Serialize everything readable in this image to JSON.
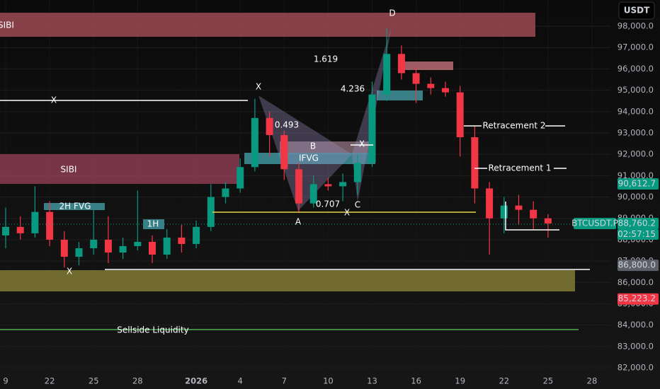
{
  "chart_data": {
    "type": "candlestick",
    "currency_button": "USDT",
    "categories": [
      "9",
      null,
      null,
      "22",
      null,
      null,
      "25",
      null,
      null,
      "28",
      null,
      null,
      null,
      "2026",
      null,
      null,
      "4",
      null,
      null,
      "7",
      null,
      null,
      "10",
      null,
      null,
      "13",
      null,
      null,
      "16",
      null,
      null,
      "19",
      null,
      null,
      "22",
      null,
      null,
      "25",
      null,
      null,
      "28"
    ],
    "open": [
      88200,
      88600,
      88300,
      89300,
      88000,
      87200,
      87600,
      88000,
      87400,
      87700,
      87900,
      87300,
      88100,
      87800,
      88600,
      90000,
      90400,
      91400,
      93700,
      92900,
      91300,
      89700,
      90600,
      90500,
      90700,
      91600,
      94800,
      96700,
      95800,
      95300,
      95100,
      94900,
      92800,
      90400,
      89000,
      89600,
      89400,
      89000,
      null,
      null,
      null
    ],
    "high": [
      89500,
      89100,
      90500,
      89800,
      88400,
      87900,
      89400,
      89100,
      88100,
      90300,
      88200,
      88500,
      88700,
      88900,
      90600,
      90700,
      91800,
      94600,
      94000,
      93100,
      91600,
      91000,
      90900,
      91100,
      92000,
      95400,
      97900,
      97100,
      96100,
      95600,
      95400,
      95200,
      93300,
      90700,
      90000,
      90100,
      89800,
      89200,
      null,
      null,
      null
    ],
    "low": [
      87600,
      88000,
      88100,
      87700,
      86700,
      86800,
      87300,
      86900,
      87100,
      87500,
      86900,
      87100,
      87400,
      87600,
      88400,
      89700,
      90200,
      91200,
      91900,
      90800,
      89300,
      89500,
      90300,
      89800,
      90100,
      91400,
      94500,
      95500,
      94400,
      94800,
      94700,
      91900,
      89700,
      87300,
      88300,
      88700,
      88500,
      88100,
      null,
      null,
      null
    ],
    "close": [
      88600,
      88300,
      89300,
      88000,
      87200,
      87600,
      88000,
      87400,
      87700,
      87900,
      87300,
      88100,
      87800,
      88600,
      90000,
      90400,
      91400,
      93700,
      92900,
      91300,
      89700,
      90600,
      90500,
      90700,
      91600,
      94800,
      96700,
      95800,
      95300,
      95100,
      94900,
      92800,
      90400,
      89000,
      89600,
      89400,
      89000,
      88760.2,
      null,
      null,
      null
    ],
    "up_color": "#089981",
    "down_color": "#f23645",
    "ylim": [
      81670,
      99226
    ],
    "yticks": [
      {
        "value": 82000,
        "label": "82,000.0"
      },
      {
        "value": 83000,
        "label": "83,000.0"
      },
      {
        "value": 84000,
        "label": "84,000.0"
      },
      {
        "value": 85000,
        "label": "85,000.0"
      },
      {
        "value": 86000,
        "label": "86,000.0"
      },
      {
        "value": 87000,
        "label": "87,000.0"
      },
      {
        "value": 88000,
        "label": "88,000.0"
      },
      {
        "value": 89000,
        "label": "89,000.0"
      },
      {
        "value": 90000,
        "label": "90,000.0"
      },
      {
        "value": 91000,
        "label": "91,000.0"
      },
      {
        "value": 92000,
        "label": "92,000.0"
      },
      {
        "value": 93000,
        "label": "93,000.0"
      },
      {
        "value": 94000,
        "label": "94,000.0"
      },
      {
        "value": 95000,
        "label": "95,000.0"
      },
      {
        "value": 96000,
        "label": "96,000.0"
      },
      {
        "value": 97000,
        "label": "97,000.0"
      },
      {
        "value": 98000,
        "label": "98,000.0"
      }
    ],
    "grid": true,
    "price_labels": [
      {
        "value": 90612.7,
        "label": "90,612.7",
        "color": "#089981"
      },
      {
        "value": 88760.2,
        "label": "88,760.2",
        "color": "#089981"
      },
      {
        "value": 86800,
        "label": "86,800.0",
        "color": "#5d606b"
      },
      {
        "value": 85223.2,
        "label": "85,223.2",
        "color": "#f23645"
      }
    ],
    "symbol_label": "BTCUSDT.P",
    "countdown": "02:57:15",
    "annotations": [
      "SIBI",
      "X",
      "1.619",
      "D",
      "4.236",
      "X",
      "0.493",
      "B",
      "IFVG",
      "X",
      "SIBI",
      "2H FVG",
      "1H",
      "0.707",
      "X",
      "A",
      "C",
      "X",
      "Retracement 2",
      "Retracement  1",
      "Sellside Liquidity"
    ]
  }
}
